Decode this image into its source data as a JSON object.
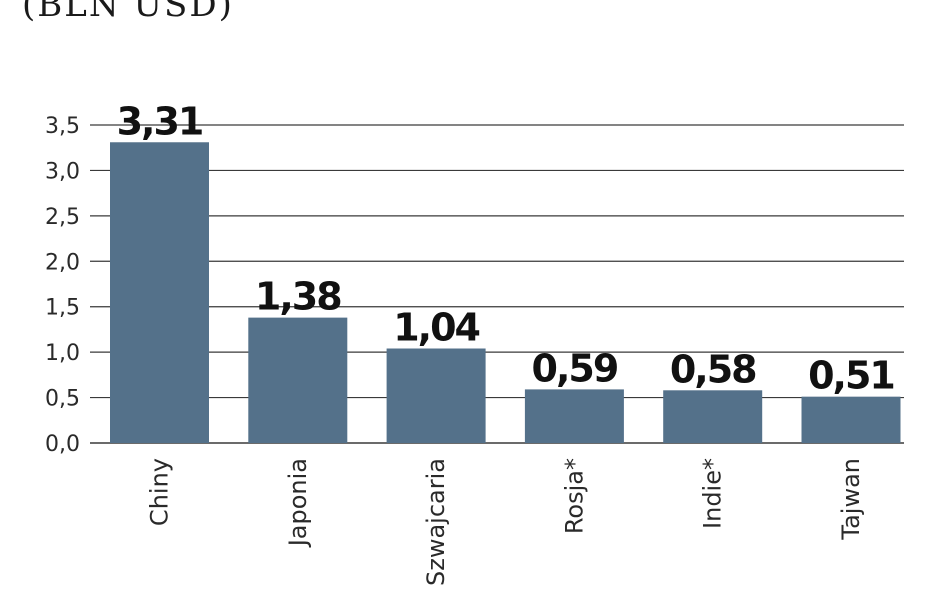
{
  "chart_data": {
    "type": "bar",
    "subtitle": "(BLN USD)",
    "categories": [
      "Chiny",
      "Japonia",
      "Szwajcaria",
      "Rosja*",
      "Indie*",
      "Tajwan"
    ],
    "values": [
      3.31,
      1.38,
      1.04,
      0.59,
      0.58,
      0.51
    ],
    "value_labels": [
      "3,31",
      "1,38",
      "1,04",
      "0,59",
      "0,58",
      "0,51"
    ],
    "y_ticks": [
      0,
      0.5,
      1.0,
      1.5,
      2.0,
      2.5,
      3.0,
      3.5
    ],
    "y_tick_labels": [
      "0,0",
      "0,5",
      "1,0",
      "1,5",
      "2,0",
      "2,5",
      "3,0",
      "3,5"
    ],
    "ylim": [
      0,
      3.5
    ],
    "grid": true,
    "colors": {
      "bar": "#54718a",
      "grid": "#3a3a3a",
      "text": "#1a1a1a"
    }
  }
}
